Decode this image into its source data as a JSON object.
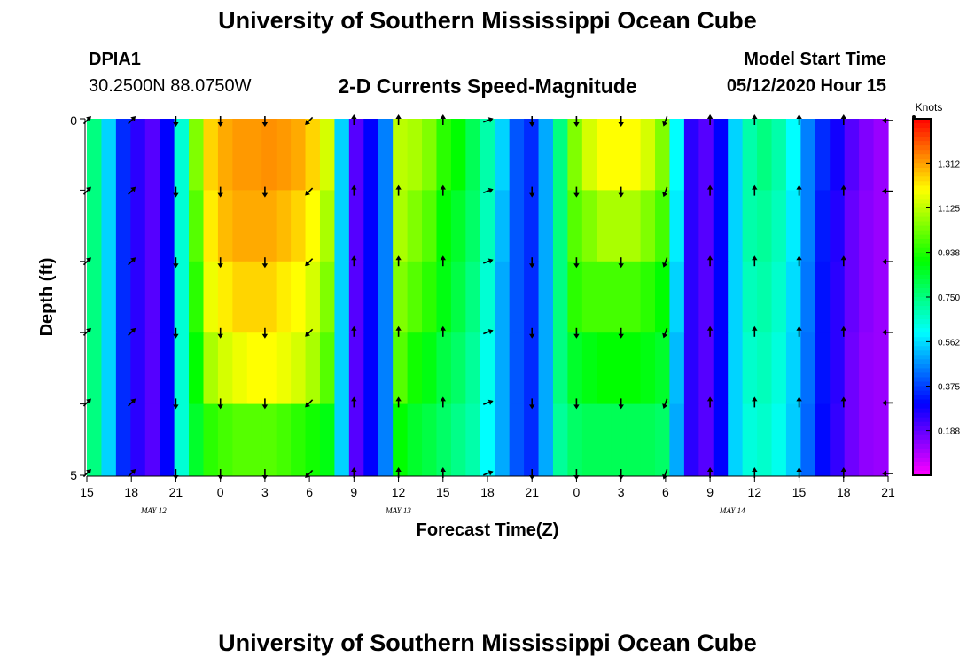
{
  "header": {
    "title": "University of Southern Mississippi Ocean Cube",
    "station_id": "DPIA1",
    "station_coords": "30.2500N 88.0750W",
    "plot_title": "2-D Currents Speed-Magnitude",
    "model_start_label": "Model Start Time",
    "model_start_value": "05/12/2020 Hour 15"
  },
  "footer": {
    "title": "University of Southern Mississippi Ocean Cube"
  },
  "chart_data": {
    "type": "heatmap",
    "title": "2-D Currents Speed-Magnitude",
    "xlabel": "Forecast Time(Z)",
    "ylabel": "Depth (ft)",
    "ylim": [
      0,
      5
    ],
    "y_ticks": [
      "0",
      "5"
    ],
    "x_tick_labels": [
      "15",
      "18",
      "21",
      "0",
      "3",
      "6",
      "9",
      "12",
      "15",
      "18",
      "21",
      "0",
      "3",
      "6",
      "9",
      "12",
      "15",
      "18",
      "21"
    ],
    "date_labels": [
      {
        "text": "MAY 12",
        "at_tick": 1.5
      },
      {
        "text": "MAY 13",
        "at_tick": 7
      },
      {
        "text": "MAY 14",
        "at_tick": 14.5
      }
    ],
    "x_hours": [
      0,
      1,
      2,
      3,
      4,
      5,
      6,
      7,
      8,
      9,
      10,
      11,
      12,
      13,
      14,
      15,
      16,
      17,
      18,
      19,
      20,
      21,
      22,
      23,
      24,
      25,
      26,
      27,
      28,
      29,
      30,
      31,
      32,
      33,
      34,
      35,
      36,
      37,
      38,
      39,
      40,
      41,
      42,
      43,
      44,
      45,
      46,
      47,
      48,
      49,
      50,
      51,
      52,
      53,
      54
    ],
    "depth_layers": 5,
    "speed_knots": [
      [
        0.75,
        0.55,
        0.35,
        0.25,
        0.2,
        0.3,
        0.65,
        1.05,
        1.25,
        1.3,
        1.32,
        1.32,
        1.33,
        1.32,
        1.3,
        1.25,
        1.15,
        0.55,
        0.2,
        0.3,
        0.45,
        1.12,
        1.1,
        1.05,
        0.95,
        0.9,
        0.8,
        0.7,
        0.55,
        0.4,
        0.35,
        0.5,
        0.75,
        1.05,
        1.15,
        1.2,
        1.2,
        1.2,
        1.15,
        1.05,
        0.6,
        0.25,
        0.2,
        0.3,
        0.55,
        0.7,
        0.75,
        0.7,
        0.6,
        0.45,
        0.35,
        0.28,
        0.2,
        0.15,
        0.12
      ],
      [
        0.75,
        0.55,
        0.35,
        0.25,
        0.2,
        0.3,
        0.65,
        1.0,
        1.22,
        1.28,
        1.3,
        1.3,
        1.3,
        1.28,
        1.25,
        1.2,
        1.1,
        0.55,
        0.2,
        0.3,
        0.45,
        1.1,
        1.05,
        1.0,
        0.9,
        0.85,
        0.78,
        0.68,
        0.52,
        0.4,
        0.35,
        0.5,
        0.75,
        1.0,
        1.05,
        1.1,
        1.1,
        1.1,
        1.05,
        0.98,
        0.58,
        0.25,
        0.2,
        0.3,
        0.55,
        0.7,
        0.72,
        0.68,
        0.58,
        0.45,
        0.33,
        0.26,
        0.18,
        0.14,
        0.12
      ],
      [
        0.75,
        0.55,
        0.35,
        0.25,
        0.2,
        0.3,
        0.65,
        0.95,
        1.18,
        1.22,
        1.25,
        1.25,
        1.25,
        1.22,
        1.2,
        1.15,
        1.05,
        0.55,
        0.2,
        0.3,
        0.45,
        1.05,
        1.0,
        0.95,
        0.88,
        0.82,
        0.75,
        0.65,
        0.5,
        0.4,
        0.35,
        0.5,
        0.75,
        0.95,
        0.98,
        0.98,
        0.98,
        0.98,
        0.95,
        0.9,
        0.55,
        0.25,
        0.2,
        0.3,
        0.55,
        0.68,
        0.7,
        0.66,
        0.56,
        0.44,
        0.32,
        0.25,
        0.18,
        0.14,
        0.12
      ],
      [
        0.75,
        0.55,
        0.35,
        0.25,
        0.2,
        0.3,
        0.65,
        0.9,
        1.1,
        1.15,
        1.18,
        1.2,
        1.2,
        1.18,
        1.15,
        1.1,
        1.0,
        0.55,
        0.2,
        0.3,
        0.45,
        1.0,
        0.92,
        0.88,
        0.82,
        0.78,
        0.72,
        0.62,
        0.5,
        0.4,
        0.35,
        0.5,
        0.75,
        0.85,
        0.88,
        0.9,
        0.9,
        0.9,
        0.88,
        0.85,
        0.52,
        0.25,
        0.2,
        0.3,
        0.55,
        0.66,
        0.68,
        0.64,
        0.55,
        0.43,
        0.32,
        0.25,
        0.17,
        0.13,
        0.12
      ],
      [
        0.75,
        0.55,
        0.35,
        0.25,
        0.2,
        0.3,
        0.65,
        0.85,
        0.95,
        0.98,
        1.0,
        1.0,
        1.0,
        0.98,
        0.95,
        0.92,
        0.88,
        0.55,
        0.2,
        0.3,
        0.45,
        0.9,
        0.85,
        0.82,
        0.78,
        0.74,
        0.7,
        0.6,
        0.5,
        0.4,
        0.35,
        0.5,
        0.72,
        0.78,
        0.8,
        0.8,
        0.8,
        0.8,
        0.8,
        0.78,
        0.5,
        0.25,
        0.2,
        0.3,
        0.55,
        0.64,
        0.66,
        0.62,
        0.54,
        0.42,
        0.31,
        0.24,
        0.17,
        0.13,
        0.12
      ]
    ],
    "arrow_columns": [
      0,
      3,
      6,
      9,
      12,
      15,
      18,
      21,
      24,
      27,
      30,
      33,
      36,
      39,
      42,
      45,
      48,
      51,
      54
    ],
    "arrow_depths": [
      0,
      1,
      2,
      3,
      4,
      5
    ],
    "arrow_directions_deg": [
      45,
      45,
      180,
      180,
      180,
      225,
      0,
      0,
      0,
      70,
      180,
      180,
      180,
      200,
      0,
      0,
      0,
      0,
      270
    ],
    "colorbar": {
      "unit_label": "Knots",
      "range": [
        0,
        1.5
      ],
      "tick_labels": [
        "1.312",
        "1.125",
        "0.938",
        "0.750",
        "0.562",
        "0.375",
        "0.188"
      ],
      "tick_values": [
        1.312,
        1.125,
        0.938,
        0.75,
        0.562,
        0.375,
        0.188
      ]
    }
  }
}
